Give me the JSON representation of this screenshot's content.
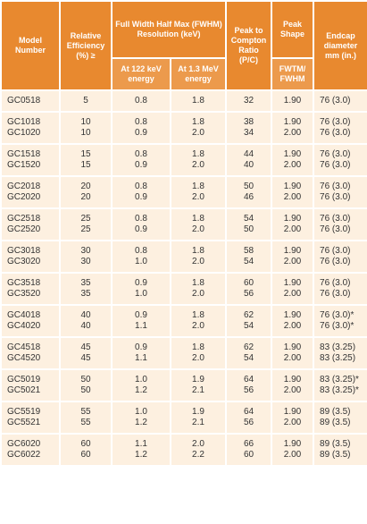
{
  "header": {
    "model": "Model Number",
    "efficiency": "Relative Efficiency (%) ≥",
    "fwhm": "Full Width Half Max (FWHM) Resolution (keV)",
    "fwhm_122": "At 122 keV energy",
    "fwhm_13": "At 1.3 MeV energy",
    "ratio": "Peak to Compton Ratio (P/C)",
    "shape": "Peak Shape",
    "shape_sub": "FWTM/ FWHM",
    "endcap": "Endcap diameter mm (in.)"
  },
  "table": {
    "groups": [
      [
        [
          "GC0518",
          "5",
          "0.8",
          "1.8",
          "32",
          "1.90",
          "76 (3.0)"
        ]
      ],
      [
        [
          "GC1018",
          "10",
          "0.8",
          "1.8",
          "38",
          "1.90",
          "76 (3.0)"
        ],
        [
          "GC1020",
          "10",
          "0.9",
          "2.0",
          "34",
          "2.00",
          "76 (3.0)"
        ]
      ],
      [
        [
          "GC1518",
          "15",
          "0.8",
          "1.8",
          "44",
          "1.90",
          "76 (3.0)"
        ],
        [
          "GC1520",
          "15",
          "0.9",
          "2.0",
          "40",
          "2.00",
          "76 (3.0)"
        ]
      ],
      [
        [
          "GC2018",
          "20",
          "0.8",
          "1.8",
          "50",
          "1.90",
          "76 (3.0)"
        ],
        [
          "GC2020",
          "20",
          "0.9",
          "2.0",
          "46",
          "2.00",
          "76 (3.0)"
        ]
      ],
      [
        [
          "GC2518",
          "25",
          "0.8",
          "1.8",
          "54",
          "1.90",
          "76 (3.0)"
        ],
        [
          "GC2520",
          "25",
          "0.9",
          "2.0",
          "50",
          "2.00",
          "76 (3.0)"
        ]
      ],
      [
        [
          "GC3018",
          "30",
          "0.8",
          "1.8",
          "58",
          "1.90",
          "76 (3.0)"
        ],
        [
          "GC3020",
          "30",
          "1.0",
          "2.0",
          "54",
          "2.00",
          "76 (3.0)"
        ]
      ],
      [
        [
          "GC3518",
          "35",
          "0.9",
          "1.8",
          "60",
          "1.90",
          "76 (3.0)"
        ],
        [
          "GC3520",
          "35",
          "1.0",
          "2.0",
          "56",
          "2.00",
          "76 (3.0)"
        ]
      ],
      [
        [
          "GC4018",
          "40",
          "0.9",
          "1.8",
          "62",
          "1.90",
          "76 (3.0)*"
        ],
        [
          "GC4020",
          "40",
          "1.1",
          "2.0",
          "54",
          "2.00",
          "76 (3.0)*"
        ]
      ],
      [
        [
          "GC4518",
          "45",
          "0.9",
          "1.8",
          "62",
          "1.90",
          "83 (3.25)"
        ],
        [
          "GC4520",
          "45",
          "1.1",
          "2.0",
          "54",
          "2.00",
          "83 (3.25)"
        ]
      ],
      [
        [
          "GC5019",
          "50",
          "1.0",
          "1.9",
          "64",
          "1.90",
          "83 (3.25)*"
        ],
        [
          "GC5021",
          "50",
          "1.2",
          "2.1",
          "56",
          "2.00",
          "83 (3.25)*"
        ]
      ],
      [
        [
          "GC5519",
          "55",
          "1.0",
          "1.9",
          "64",
          "1.90",
          "89 (3.5)"
        ],
        [
          "GC5521",
          "55",
          "1.2",
          "2.1",
          "56",
          "2.00",
          "89 (3.5)"
        ]
      ],
      [
        [
          "GC6020",
          "60",
          "1.1",
          "2.0",
          "66",
          "1.90",
          "89 (3.5)"
        ],
        [
          "GC6022",
          "60",
          "1.2",
          "2.2",
          "60",
          "2.00",
          "89 (3.5)"
        ]
      ]
    ]
  }
}
